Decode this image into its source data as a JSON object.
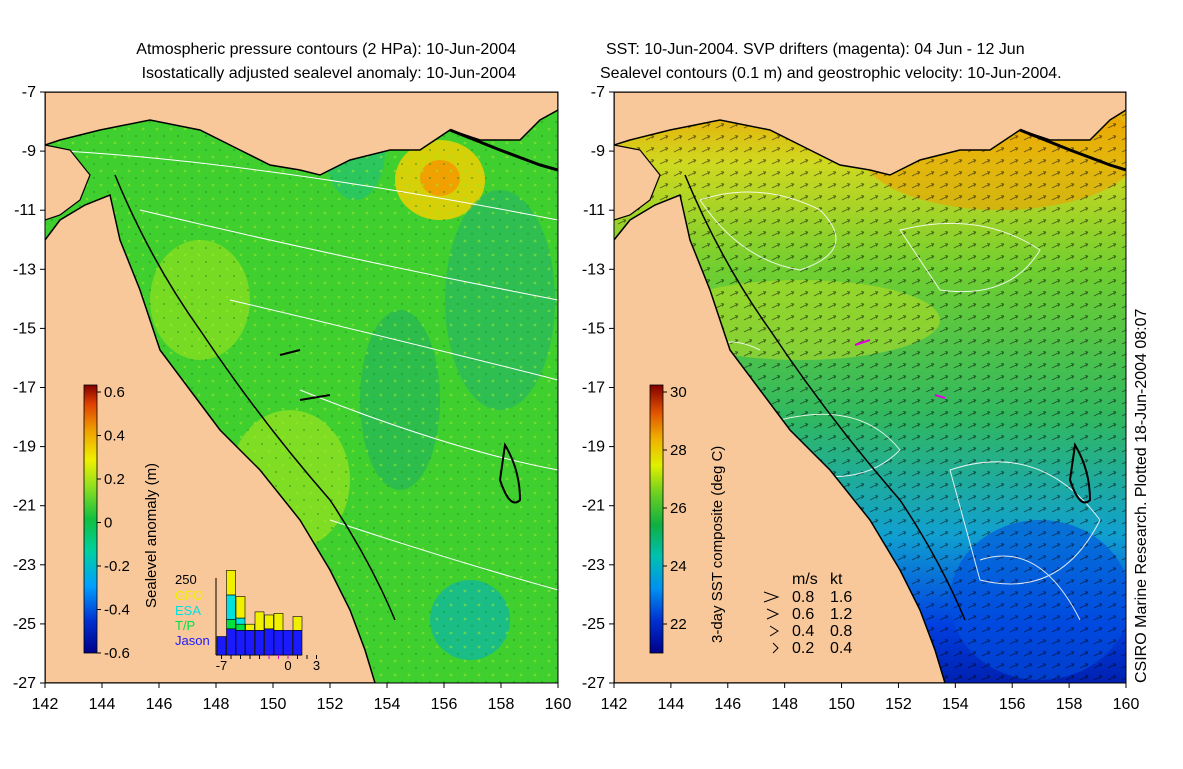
{
  "left_panel": {
    "title_line1": "Atmospheric pressure contours (2 HPa): 10-Jun-2004",
    "title_line2": "Isostatically adjusted sealevel anomaly: 10-Jun-2004",
    "x_ticks": [
      "142",
      "144",
      "146",
      "148",
      "150",
      "152",
      "154",
      "156",
      "158",
      "160"
    ],
    "y_ticks": [
      "-7",
      "-9",
      "-11",
      "-13",
      "-15",
      "-17",
      "-19",
      "-21",
      "-23",
      "-25",
      "-27"
    ],
    "colorbar": {
      "label": "Sealevel anomaly (m)",
      "ticks": [
        "0.6",
        "0.4",
        "0.2",
        "0",
        "-0.2",
        "-0.4",
        "-0.6"
      ],
      "range": [
        -0.6,
        0.6
      ]
    },
    "inset": {
      "y_top_label": "250",
      "legend": [
        {
          "label": "GFO",
          "color": "#f0f000"
        },
        {
          "label": "ESA",
          "color": "#00e0e0"
        },
        {
          "label": "T/P",
          "color": "#00e040"
        },
        {
          "label": "Jason",
          "color": "#1a1aff"
        }
      ],
      "x_ticks": [
        "-7",
        "0",
        "3"
      ],
      "bars": [
        {
          "day": -7,
          "jason": 60,
          "tp": 0,
          "esa": 0,
          "gfo": 0
        },
        {
          "day": -6,
          "jason": 85,
          "tp": 30,
          "esa": 80,
          "gfo": 80
        },
        {
          "day": -5,
          "jason": 80,
          "tp": 20,
          "esa": 20,
          "gfo": 70
        },
        {
          "day": -4,
          "jason": 80,
          "tp": 0,
          "esa": 0,
          "gfo": 20
        },
        {
          "day": -3,
          "jason": 80,
          "tp": 0,
          "esa": 0,
          "gfo": 60
        },
        {
          "day": -2,
          "jason": 85,
          "tp": 0,
          "esa": 0,
          "gfo": 45
        },
        {
          "day": -1,
          "jason": 80,
          "tp": 0,
          "esa": 0,
          "gfo": 55
        },
        {
          "day": 0,
          "jason": 80,
          "tp": 0,
          "esa": 0,
          "gfo": 0
        },
        {
          "day": 1,
          "jason": 80,
          "tp": 0,
          "esa": 0,
          "gfo": 45
        }
      ]
    }
  },
  "right_panel": {
    "title_line1": "SST: 10-Jun-2004. SVP drifters (magenta): 04 Jun - 12 Jun",
    "title_line2": "Sealevel contours (0.1 m) and geostrophic velocity: 10-Jun-2004.",
    "x_ticks": [
      "142",
      "144",
      "146",
      "148",
      "150",
      "152",
      "154",
      "156",
      "158",
      "160"
    ],
    "y_ticks": [
      "-7",
      "-9",
      "-11",
      "-13",
      "-15",
      "-17",
      "-19",
      "-21",
      "-23",
      "-25",
      "-27"
    ],
    "colorbar": {
      "label": "3-day SST composite (deg C)",
      "ticks": [
        "30",
        "28",
        "26",
        "24",
        "22"
      ],
      "range": [
        21,
        30
      ]
    },
    "velocity_legend": {
      "headers": [
        "m/s",
        "kt"
      ],
      "rows": [
        [
          "0.8",
          "1.6"
        ],
        [
          "0.6",
          "1.2"
        ],
        [
          "0.4",
          "0.8"
        ],
        [
          "0.2",
          "0.4"
        ]
      ]
    }
  },
  "credit": "CSIRO Marine Research. Plotted 18-Jun-2004 08:07",
  "colors": {
    "land": "#f8c89a",
    "sea_green": "#3fcf2f",
    "coast": "#000000"
  }
}
